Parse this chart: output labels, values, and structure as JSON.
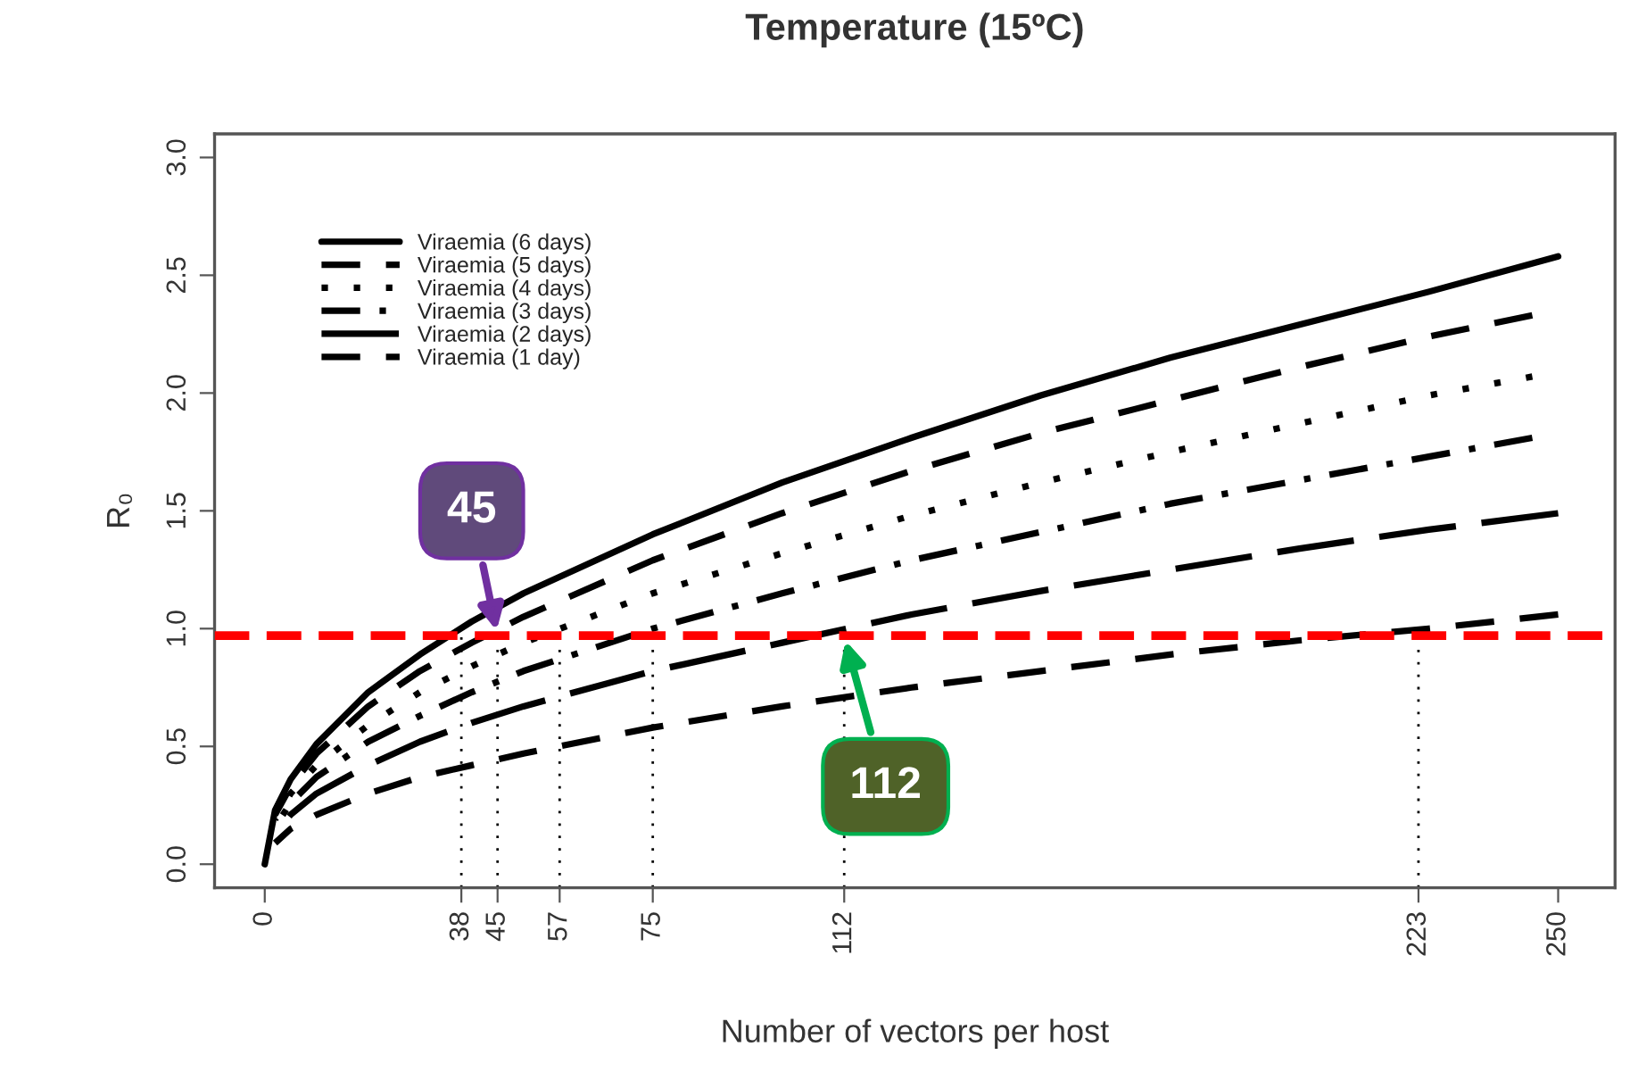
{
  "chart_data": {
    "type": "line",
    "title": "Temperature (15ºC)",
    "xlabel": "Number of vectors per host",
    "ylabel": "R₀",
    "xlim": [
      -9.7,
      261
    ],
    "xticks": [
      0,
      38,
      45,
      57,
      75,
      112,
      223,
      250
    ],
    "ylim": [
      -0.1,
      3.1
    ],
    "yticks": [
      {
        "value": 0,
        "label": "0.0"
      },
      0.5,
      {
        "value": 1,
        "label": "1.0"
      },
      1.5,
      {
        "value": 2,
        "label": "2.0"
      },
      2.5,
      {
        "value": 3,
        "label": "3.0"
      }
    ],
    "grid": false,
    "legend": "top left",
    "marker": "none",
    "series": [
      {
        "name": "Viraemia (6 days)",
        "color": "#000000",
        "line_style": "solid",
        "x": [
          0,
          2,
          5,
          10,
          20,
          30,
          40,
          50,
          75,
          100,
          125,
          150,
          175,
          200,
          225,
          250
        ],
        "values": [
          0,
          0.23,
          0.36,
          0.51,
          0.73,
          0.89,
          1.03,
          1.15,
          1.4,
          1.62,
          1.81,
          1.99,
          2.15,
          2.29,
          2.43,
          2.58
        ]
      },
      {
        "name": "Viraemia (5 days)",
        "color": "#000000",
        "line_style": "dashed",
        "x": [
          2,
          5,
          10,
          20,
          30,
          40,
          50,
          75,
          100,
          125,
          150,
          175,
          200,
          225,
          245
        ],
        "values": [
          0.21,
          0.33,
          0.47,
          0.67,
          0.82,
          0.94,
          1.05,
          1.29,
          1.49,
          1.67,
          1.83,
          1.97,
          2.11,
          2.24,
          2.33
        ]
      },
      {
        "name": "Viraemia (4 days)",
        "color": "#000000",
        "line_style": "dotted",
        "x": [
          2,
          5,
          10,
          20,
          30,
          40,
          50,
          75,
          100,
          125,
          150,
          175,
          200,
          225,
          245
        ],
        "values": [
          0.19,
          0.3,
          0.42,
          0.59,
          0.73,
          0.84,
          0.94,
          1.15,
          1.32,
          1.48,
          1.62,
          1.75,
          1.87,
          1.99,
          2.07
        ]
      },
      {
        "name": "Viraemia (3 days)",
        "color": "#000000",
        "line_style": "dashdot",
        "x": [
          2,
          5,
          10,
          20,
          30,
          40,
          50,
          75,
          100,
          125,
          150,
          175,
          200,
          225,
          245
        ],
        "values": [
          0.16,
          0.26,
          0.37,
          0.52,
          0.63,
          0.73,
          0.82,
          1.0,
          1.15,
          1.29,
          1.41,
          1.53,
          1.63,
          1.73,
          1.81
        ]
      },
      {
        "name": "Viraemia (2 days)",
        "color": "#000000",
        "line_style": "longdash",
        "x": [
          2,
          5,
          10,
          20,
          30,
          40,
          50,
          75,
          100,
          125,
          150,
          175,
          200,
          225,
          250
        ],
        "values": [
          0.13,
          0.21,
          0.3,
          0.42,
          0.52,
          0.6,
          0.67,
          0.82,
          0.94,
          1.06,
          1.16,
          1.25,
          1.34,
          1.42,
          1.49
        ]
      },
      {
        "name": "Viraemia (1 day)",
        "color": "#000000",
        "line_style": "dashed",
        "x": [
          2,
          5,
          10,
          20,
          30,
          40,
          50,
          75,
          100,
          125,
          150,
          175,
          200,
          225,
          250
        ],
        "values": [
          0.09,
          0.15,
          0.21,
          0.3,
          0.37,
          0.42,
          0.47,
          0.58,
          0.67,
          0.75,
          0.82,
          0.89,
          0.95,
          1.0,
          1.06
        ]
      }
    ],
    "ref_lines": [
      {
        "axis": "y",
        "value": 0.97,
        "color": "#ff0000",
        "line_style": "dashed"
      },
      {
        "axis": "x",
        "value": 38,
        "color": "#000000",
        "line_style": "dotted"
      },
      {
        "axis": "x",
        "value": 45,
        "color": "#000000",
        "line_style": "dotted"
      },
      {
        "axis": "x",
        "value": 57,
        "color": "#000000",
        "line_style": "dotted"
      },
      {
        "axis": "x",
        "value": 75,
        "color": "#000000",
        "line_style": "dotted"
      },
      {
        "axis": "x",
        "value": 112,
        "color": "#000000",
        "line_style": "dotted"
      },
      {
        "axis": "x",
        "value": 223,
        "color": "#000000",
        "line_style": "dotted"
      }
    ],
    "annotations": [
      {
        "text": "45",
        "x": 45,
        "y": 0.97
      },
      {
        "text": "112",
        "x": 112,
        "y": 0.97
      }
    ]
  }
}
